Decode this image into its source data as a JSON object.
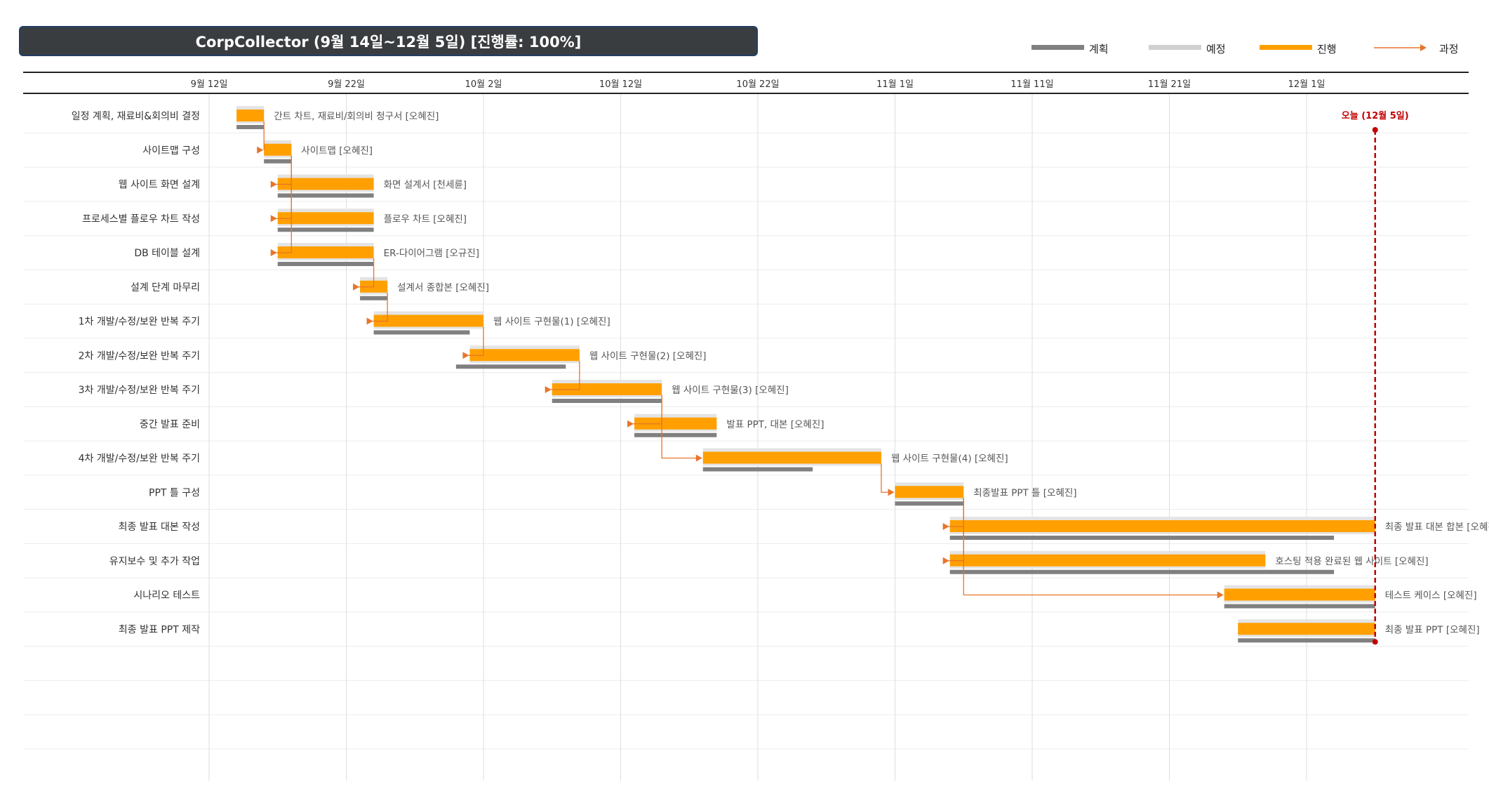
{
  "title": "CorpCollector (9월 14일~12월 5일) [진행률: 100%]",
  "colors": {
    "plan": "#808080",
    "scheduled": "#d0d0d0",
    "progress": "#ffa000",
    "process_arrow": "#e8742a",
    "today": "#c00000"
  },
  "legend": [
    {
      "key": "plan",
      "label": "계획"
    },
    {
      "key": "scheduled",
      "label": "예정"
    },
    {
      "key": "progress",
      "label": "진행"
    },
    {
      "key": "process",
      "label": "과정"
    }
  ],
  "today_label": "오늘 (12월 5일)",
  "chart_data": {
    "type": "gantt",
    "x_axis": {
      "ticks": [
        "9월 12일",
        "9월 22일",
        "10월 2일",
        "10월 12일",
        "10월 22일",
        "11월 1일",
        "11월 11일",
        "11월 21일",
        "12월 1일"
      ],
      "tick_dates": [
        "09-12",
        "09-22",
        "10-02",
        "10-12",
        "10-22",
        "11-01",
        "11-11",
        "11-21",
        "12-01"
      ]
    },
    "today": "12-05",
    "tasks": [
      {
        "name": "일정 계획, 재료비&회의비 결정",
        "start": "09-14",
        "end": "09-15",
        "plan_start": "09-14",
        "plan_end": "09-15",
        "label": "간트 차트, 재료비/회의비 청구서 [오혜진]"
      },
      {
        "name": "사이트맵 구성",
        "start": "09-16",
        "end": "09-17",
        "plan_start": "09-16",
        "plan_end": "09-17",
        "label": "사이트맵 [오혜진]"
      },
      {
        "name": "웹 사이트 화면 설계",
        "start": "09-17",
        "end": "09-23",
        "plan_start": "09-17",
        "plan_end": "09-23",
        "label": "화면 설계서 [천세륜]"
      },
      {
        "name": "프로세스별 플로우 차트 작성",
        "start": "09-17",
        "end": "09-23",
        "plan_start": "09-17",
        "plan_end": "09-23",
        "label": "플로우 차트 [오혜진]"
      },
      {
        "name": "DB 테이블 설계",
        "start": "09-17",
        "end": "09-23",
        "plan_start": "09-17",
        "plan_end": "09-23",
        "label": "ER-다이어그램 [오규진]"
      },
      {
        "name": "설계 단계 마무리",
        "start": "09-23",
        "end": "09-24",
        "plan_start": "09-23",
        "plan_end": "09-24",
        "label": "설계서 종합본 [오혜진]"
      },
      {
        "name": "1차 개발/수정/보완 반복 주기",
        "start": "09-24",
        "end": "10-01",
        "plan_start": "09-24",
        "plan_end": "09-30",
        "label": "웹 사이트 구현물(1) [오혜진]"
      },
      {
        "name": "2차 개발/수정/보완 반복 주기",
        "start": "10-01",
        "end": "10-08",
        "plan_start": "09-30",
        "plan_end": "10-07",
        "label": "웹 사이트 구현물(2) [오혜진]"
      },
      {
        "name": "3차 개발/수정/보완 반복 주기",
        "start": "10-07",
        "end": "10-14",
        "plan_start": "10-07",
        "plan_end": "10-14",
        "label": "웹 사이트 구현물(3) [오혜진]"
      },
      {
        "name": "중간 발표 준비",
        "start": "10-13",
        "end": "10-18",
        "plan_start": "10-13",
        "plan_end": "10-18",
        "label": "발표 PPT, 대본 [오혜진]"
      },
      {
        "name": "4차 개발/수정/보완 반복 주기",
        "start": "10-18",
        "end": "10-30",
        "plan_start": "10-18",
        "plan_end": "10-25",
        "label": "웹 사이트 구현물(4) [오혜진]"
      },
      {
        "name": "PPT 틀 구성",
        "start": "11-01",
        "end": "11-05",
        "plan_start": "11-01",
        "plan_end": "11-05",
        "label": "최종발표 PPT 틀 [오혜진]"
      },
      {
        "name": "최종 발표 대본 작성",
        "start": "11-05",
        "end": "12-05",
        "plan_start": "11-05",
        "plan_end": "12-02",
        "label": "최종 발표 대본 합본 [오혜진]"
      },
      {
        "name": "유지보수 및 추가 작업",
        "start": "11-05",
        "end": "11-27",
        "plan_start": "11-05",
        "plan_end": "12-02",
        "label": "호스팅 적용 완료된 웹 사이트 [오혜진]"
      },
      {
        "name": "시나리오 테스트",
        "start": "11-25",
        "end": "12-05",
        "plan_start": "11-25",
        "plan_end": "12-05",
        "label": "테스트 케이스 [오혜진]"
      },
      {
        "name": "최종 발표 PPT 제작",
        "start": "11-26",
        "end": "12-05",
        "plan_start": "11-26",
        "plan_end": "12-05",
        "label": "최종 발표 PPT [오혜진]"
      }
    ],
    "dependencies": [
      [
        0,
        1
      ],
      [
        1,
        2
      ],
      [
        1,
        3
      ],
      [
        1,
        4
      ],
      [
        4,
        5
      ],
      [
        5,
        6
      ],
      [
        6,
        7
      ],
      [
        7,
        8
      ],
      [
        8,
        9
      ],
      [
        8,
        10
      ],
      [
        10,
        11
      ],
      [
        11,
        12
      ],
      [
        11,
        13
      ],
      [
        11,
        14
      ]
    ]
  }
}
